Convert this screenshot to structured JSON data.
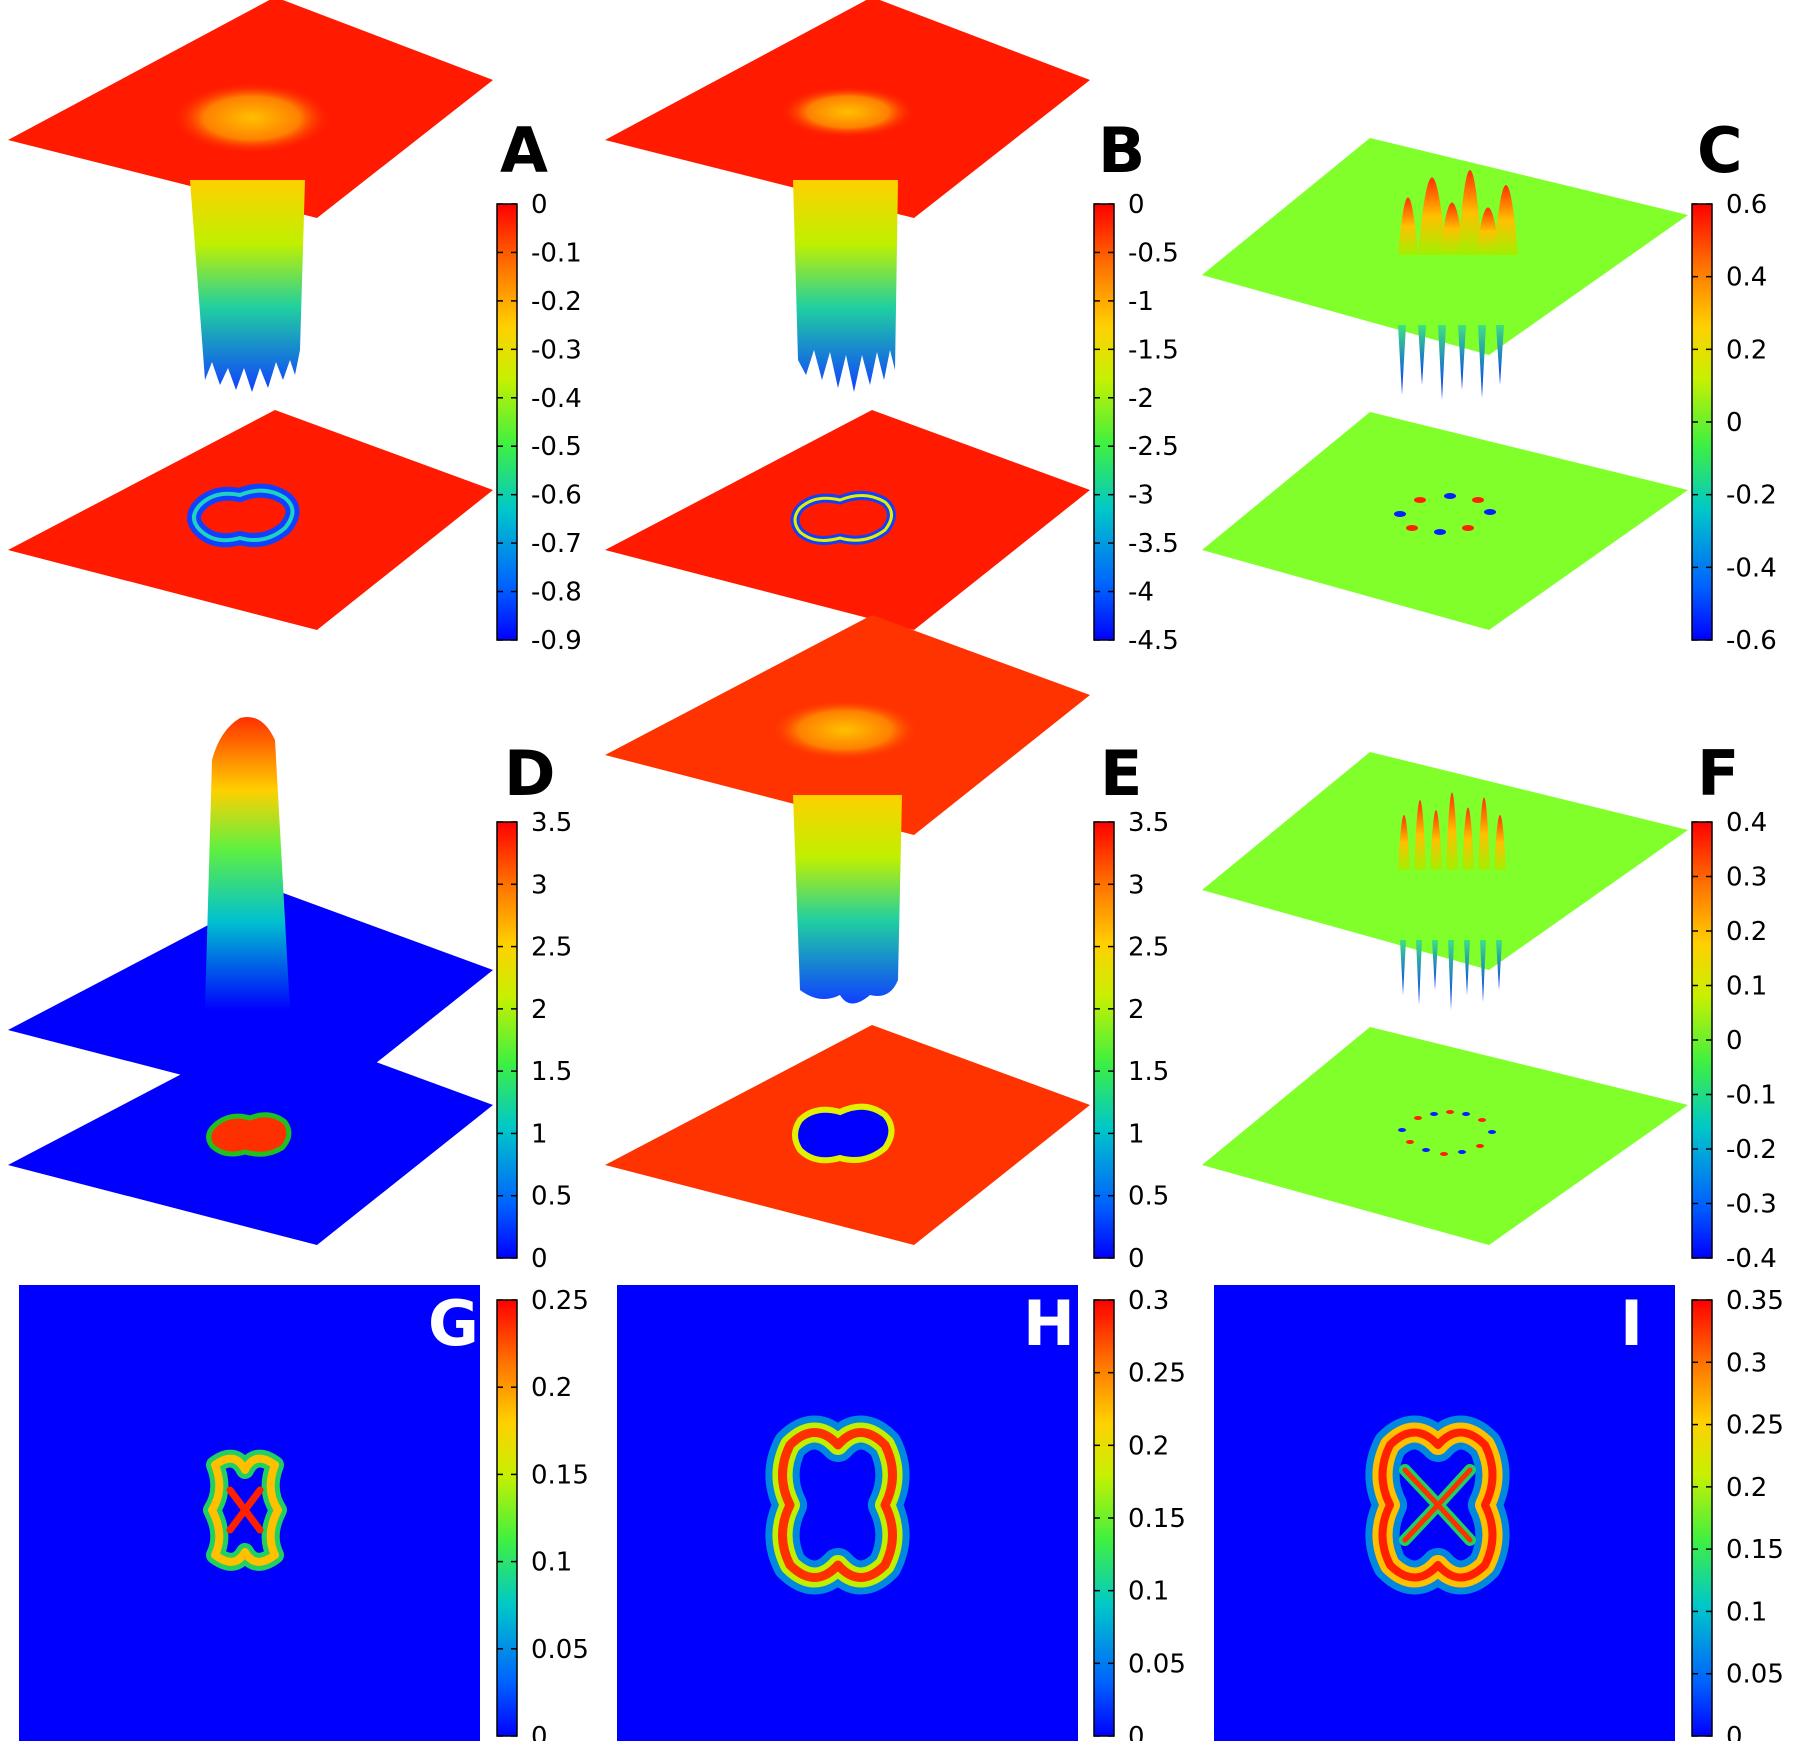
{
  "chart_data": [
    {
      "panel": "A",
      "type": "surface",
      "label": "A",
      "colorbar_ticks": [
        "0",
        "-0.1",
        "-0.2",
        "-0.3",
        "-0.4",
        "-0.5",
        "-0.6",
        "-0.7",
        "-0.8",
        "-0.9"
      ],
      "zlim": [
        -0.9,
        0
      ],
      "colormap": "jet"
    },
    {
      "panel": "B",
      "type": "surface",
      "label": "B",
      "colorbar_ticks": [
        "0",
        "-0.5",
        "-1",
        "-1.5",
        "-2",
        "-2.5",
        "-3",
        "-3.5",
        "-4",
        "-4.5"
      ],
      "zlim": [
        -4.5,
        0
      ],
      "colormap": "jet"
    },
    {
      "panel": "C",
      "type": "surface",
      "label": "C",
      "colorbar_ticks": [
        "0.6",
        "0.4",
        "0.2",
        "0",
        "-0.2",
        "-0.4",
        "-0.6"
      ],
      "zlim": [
        -0.6,
        0.6
      ],
      "colormap": "jet"
    },
    {
      "panel": "D",
      "type": "surface",
      "label": "D",
      "colorbar_ticks": [
        "3.5",
        "3",
        "2.5",
        "2",
        "1.5",
        "1",
        "0.5",
        "0"
      ],
      "zlim": [
        0,
        3.5
      ],
      "colormap": "jet"
    },
    {
      "panel": "E",
      "type": "surface",
      "label": "E",
      "colorbar_ticks": [
        "3.5",
        "3",
        "2.5",
        "2",
        "1.5",
        "1",
        "0.5",
        "0"
      ],
      "zlim": [
        0,
        3.5
      ],
      "colormap": "jet"
    },
    {
      "panel": "F",
      "type": "surface",
      "label": "F",
      "colorbar_ticks": [
        "0.4",
        "0.3",
        "0.2",
        "0.1",
        "0",
        "-0.1",
        "-0.2",
        "-0.3",
        "-0.4"
      ],
      "zlim": [
        -0.4,
        0.4
      ],
      "colormap": "jet"
    },
    {
      "panel": "G",
      "type": "heatmap",
      "label": "G",
      "colorbar_ticks": [
        "0.25",
        "0.2",
        "0.15",
        "0.1",
        "0.05",
        "0"
      ],
      "zlim": [
        0,
        0.25
      ],
      "colormap": "jet"
    },
    {
      "panel": "H",
      "type": "heatmap",
      "label": "H",
      "colorbar_ticks": [
        "0.3",
        "0.25",
        "0.2",
        "0.15",
        "0.1",
        "0.05",
        "0"
      ],
      "zlim": [
        0,
        0.3
      ],
      "colormap": "jet"
    },
    {
      "panel": "I",
      "type": "heatmap",
      "label": "I",
      "colorbar_ticks": [
        "0.35",
        "0.3",
        "0.25",
        "0.2",
        "0.15",
        "0.1",
        "0.05",
        "0"
      ],
      "zlim": [
        0,
        0.35
      ],
      "colormap": "jet"
    }
  ],
  "colors": {
    "red": "#ff1a00",
    "orange_red": "#ff3300",
    "green": "#80ff2a",
    "blue": "#0000ff",
    "jet": [
      "#0000ff",
      "#0080ff",
      "#00e0c0",
      "#40ff40",
      "#c0ff00",
      "#ffd000",
      "#ff6000",
      "#ff0000"
    ]
  }
}
